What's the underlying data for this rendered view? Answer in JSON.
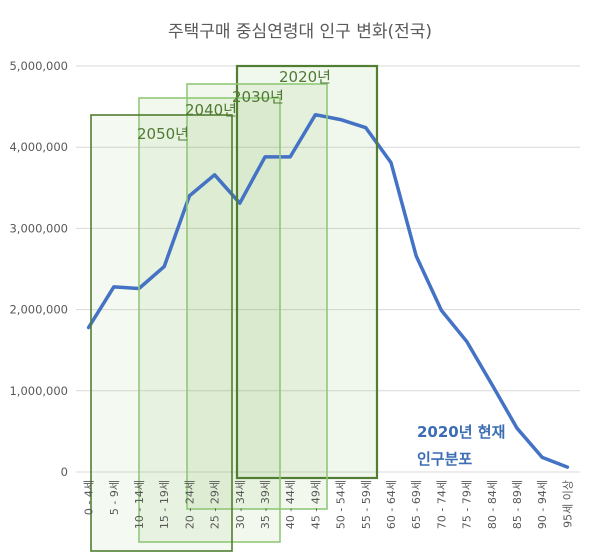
{
  "chart_data": {
    "type": "line",
    "title": "주택구매 중심연령대 인구 변화(전국)",
    "xlabel": "",
    "ylabel": "",
    "ylim": [
      0,
      5000000
    ],
    "yticks": [
      "0",
      "1,000,000",
      "2,000,000",
      "3,000,000",
      "4,000,000",
      "5,000,000"
    ],
    "grid": true,
    "categories": [
      "0 - 4세",
      "5 - 9세",
      "10 - 14세",
      "15 - 19세",
      "20 - 24세",
      "25 - 29세",
      "30 - 34세",
      "35 - 39세",
      "40 - 44세",
      "45 - 49세",
      "50 - 54세",
      "55 - 59세",
      "60 - 64세",
      "65 - 69세",
      "70 - 74세",
      "75 - 79세",
      "80 - 84세",
      "85 - 89세",
      "90 - 94세",
      "95세 이상"
    ],
    "series": [
      {
        "name": "",
        "color": "#4472c4",
        "values": [
          1780000,
          2280000,
          2260000,
          2530000,
          3400000,
          3660000,
          3310000,
          3880000,
          3880000,
          4400000,
          4340000,
          4240000,
          3810000,
          2660000,
          1990000,
          1610000,
          1080000,
          540000,
          180000,
          60000
        ]
      }
    ],
    "highlight_boxes": [
      {
        "label": "2020년",
        "from_category": "30 - 34세",
        "to_category": "55 - 59세"
      },
      {
        "label": "2030년",
        "from_category": "20 - 24세",
        "to_category": "45 - 49세"
      },
      {
        "label": "2040년",
        "from_category": "10 - 14세",
        "to_category": "35 - 39세"
      },
      {
        "label": "2050년",
        "from_category": "0 - 4세",
        "to_category": "25 - 29세"
      }
    ],
    "annotation": {
      "line1": "2020년 현재",
      "line2": "인구분포"
    }
  }
}
